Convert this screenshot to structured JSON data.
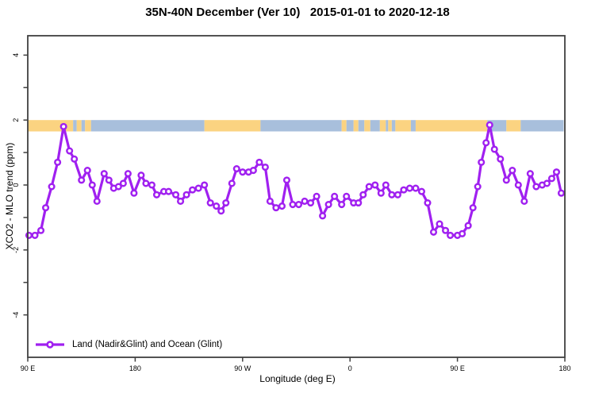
{
  "title": "35N-40N December (Ver 10)   2015-01-01 to 2020-12-18",
  "legend": {
    "label": "Land (Nadir&Glint) and Ocean (Glint)"
  },
  "colors": {
    "series": "#A020F0",
    "marker_fill": "#ffffff",
    "land_band": "#FBD381",
    "ocean_band": "#A8BFDC",
    "axis": "#404040",
    "text": "#000000",
    "background": "#ffffff"
  },
  "chart_data": {
    "type": "line",
    "title": "35N-40N December (Ver 10)   2015-01-01 to 2020-12-18",
    "xlabel": "Longitude (deg E)",
    "ylabel": "XCO2 - MLO trend (ppm)",
    "x_axis": {
      "range_deg": [
        90,
        540
      ],
      "ticks": [
        {
          "pos": 90,
          "label": "90 E"
        },
        {
          "pos": 180,
          "label": "180"
        },
        {
          "pos": 270,
          "label": "90 W"
        },
        {
          "pos": 360,
          "label": "0"
        },
        {
          "pos": 450,
          "label": "90 E"
        },
        {
          "pos": 540,
          "label": "180"
        }
      ],
      "note": "longitude wraps eastward from 90E through 180, 90W, 0, back to 90E and 180"
    },
    "y_axis": {
      "range_ppm": [
        -5.3,
        4.6
      ],
      "major_ticks": [
        -4,
        -2,
        0,
        2,
        4
      ],
      "minor_ticks": [
        -3,
        -1,
        1,
        3
      ],
      "grid": false
    },
    "legend_position": "bottom-left-inside",
    "series_name": "Land (Nadir&Glint) and Ocean (Glint)",
    "marker": "open-circle",
    "x_plot_deg": [
      91,
      96,
      101,
      105,
      110,
      115,
      120,
      125,
      129,
      135,
      140,
      144,
      148,
      154,
      158,
      162,
      166,
      170,
      174,
      179,
      185,
      189,
      194,
      198,
      204,
      208,
      214,
      218,
      223,
      228,
      233,
      238,
      243,
      248,
      252,
      256,
      261,
      265,
      270,
      275,
      279,
      284,
      289,
      293,
      298,
      303,
      307,
      312,
      317,
      322,
      327,
      332,
      337,
      342,
      347,
      353,
      357,
      363,
      367,
      371,
      376,
      381,
      386,
      390,
      395,
      400,
      405,
      410,
      415,
      420,
      425,
      430,
      435,
      440,
      444,
      450,
      454,
      459,
      463,
      467,
      470,
      474,
      477,
      481,
      486,
      491,
      496,
      501,
      506,
      511,
      516,
      521,
      525,
      529,
      533,
      537
    ],
    "values_ppm": [
      -1.55,
      -1.55,
      -1.4,
      -0.7,
      -0.05,
      0.7,
      1.8,
      1.05,
      0.8,
      0.15,
      0.45,
      0,
      -0.5,
      0.35,
      0.15,
      -0.1,
      -0.05,
      0.05,
      0.35,
      -0.25,
      0.3,
      0.05,
      0,
      -0.3,
      -0.2,
      -0.2,
      -0.3,
      -0.5,
      -0.3,
      -0.15,
      -0.1,
      0,
      -0.55,
      -0.65,
      -0.8,
      -0.55,
      0.05,
      0.5,
      0.4,
      0.4,
      0.45,
      0.7,
      0.55,
      -0.5,
      -0.7,
      -0.65,
      0.15,
      -0.6,
      -0.6,
      -0.5,
      -0.55,
      -0.35,
      -0.95,
      -0.6,
      -0.35,
      -0.6,
      -0.35,
      -0.55,
      -0.55,
      -0.3,
      -0.05,
      0,
      -0.25,
      0,
      -0.3,
      -0.3,
      -0.15,
      -0.1,
      -0.1,
      -0.2,
      -0.55,
      -1.45,
      -1.2,
      -1.4,
      -1.55,
      -1.55,
      -1.5,
      -1.25,
      -0.7,
      -0.05,
      0.7,
      1.3,
      1.85,
      1.1,
      0.8,
      0.15,
      0.45,
      0,
      -0.5,
      0.35,
      -0.05,
      0,
      0.05,
      0.2,
      0.4,
      -0.25
    ],
    "surface_band": {
      "y_range_ppm": [
        1.65,
        2.0
      ],
      "segments": [
        {
          "from_deg": 90,
          "to_deg": 128,
          "type": "land"
        },
        {
          "from_deg": 128,
          "to_deg": 131,
          "type": "ocean"
        },
        {
          "from_deg": 131,
          "to_deg": 135,
          "type": "land"
        },
        {
          "from_deg": 135,
          "to_deg": 138,
          "type": "ocean"
        },
        {
          "from_deg": 138,
          "to_deg": 143,
          "type": "land"
        },
        {
          "from_deg": 143,
          "to_deg": 238,
          "type": "ocean"
        },
        {
          "from_deg": 238,
          "to_deg": 285,
          "type": "land"
        },
        {
          "from_deg": 285,
          "to_deg": 353,
          "type": "ocean"
        },
        {
          "from_deg": 353,
          "to_deg": 357,
          "type": "land"
        },
        {
          "from_deg": 357,
          "to_deg": 363,
          "type": "ocean"
        },
        {
          "from_deg": 363,
          "to_deg": 367,
          "type": "land"
        },
        {
          "from_deg": 367,
          "to_deg": 372,
          "type": "ocean"
        },
        {
          "from_deg": 372,
          "to_deg": 377,
          "type": "land"
        },
        {
          "from_deg": 377,
          "to_deg": 385,
          "type": "ocean"
        },
        {
          "from_deg": 385,
          "to_deg": 390,
          "type": "land"
        },
        {
          "from_deg": 390,
          "to_deg": 392,
          "type": "ocean"
        },
        {
          "from_deg": 392,
          "to_deg": 395,
          "type": "land"
        },
        {
          "from_deg": 395,
          "to_deg": 398,
          "type": "ocean"
        },
        {
          "from_deg": 398,
          "to_deg": 411,
          "type": "land"
        },
        {
          "from_deg": 411,
          "to_deg": 415,
          "type": "ocean"
        },
        {
          "from_deg": 415,
          "to_deg": 475,
          "type": "land"
        },
        {
          "from_deg": 475,
          "to_deg": 491,
          "type": "ocean"
        },
        {
          "from_deg": 491,
          "to_deg": 503,
          "type": "land"
        },
        {
          "from_deg": 503,
          "to_deg": 539,
          "type": "ocean"
        }
      ]
    }
  }
}
